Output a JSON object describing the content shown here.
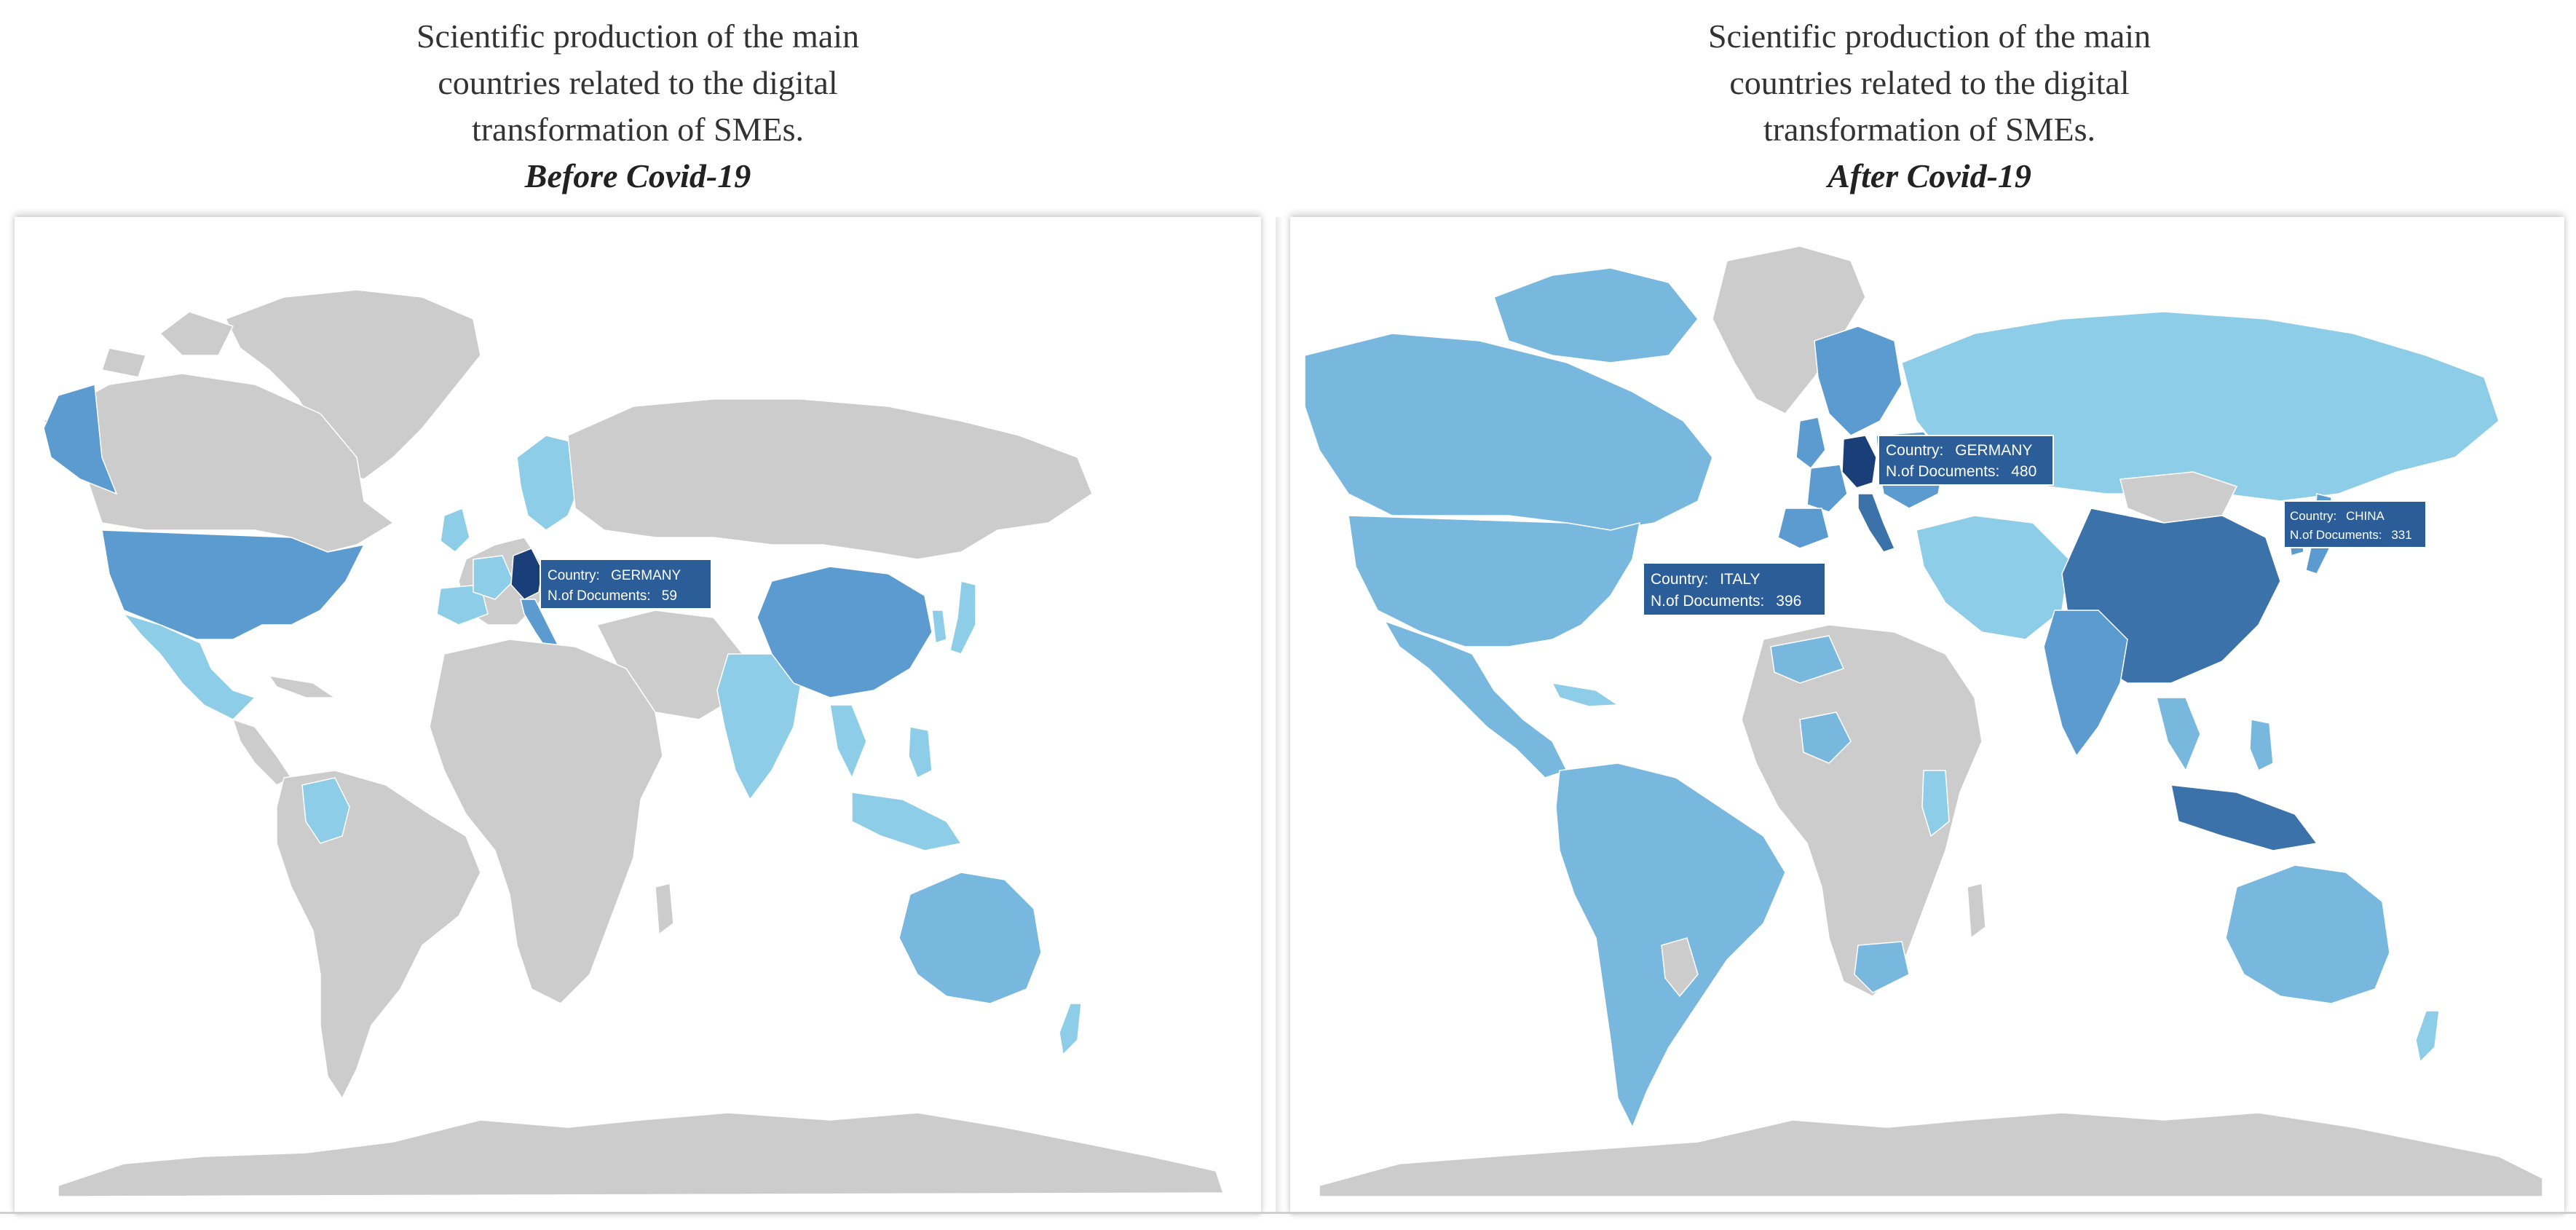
{
  "panels": {
    "before": {
      "title_lines": [
        "Scientific production of the main",
        "countries related to the digital",
        "transformation of SMEs."
      ],
      "period": "Before Covid-19",
      "tooltip": {
        "country_label": "Country:",
        "country": "GERMANY",
        "docs_label": "N.of Documents:",
        "docs": "59"
      }
    },
    "after": {
      "title_lines": [
        "Scientific production of the main",
        "countries related to the digital",
        "transformation of SMEs."
      ],
      "period": "After Covid-19",
      "tooltips": [
        {
          "country_label": "Country:",
          "country": "GERMANY",
          "docs_label": "N.of Documents:",
          "docs": "480"
        },
        {
          "country_label": "Country:",
          "country": "ITALY",
          "docs_label": "N.of Documents:",
          "docs": "396"
        },
        {
          "country_label": "Country:",
          "country": "CHINA",
          "docs_label": "N.of Documents:",
          "docs": "331"
        }
      ]
    }
  },
  "colors": {
    "land_no_data": "#cccccc",
    "low": "#8ecde8",
    "mid_low": "#78b8df",
    "mid": "#5b9bd0",
    "high": "#3b72aa",
    "highest": "#1a3f78",
    "tooltip_bg": "#2b5d98",
    "tooltip_text": "#ffffff"
  }
}
